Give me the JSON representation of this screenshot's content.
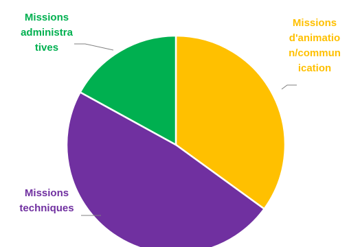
{
  "chart_data": {
    "type": "pie",
    "labels": [
      [
        "Missions",
        "d'animatio",
        "n/commun",
        "ication"
      ],
      [
        "Missions",
        "techniques"
      ],
      [
        "Missions",
        "administra",
        "tives"
      ]
    ],
    "values": [
      35,
      48,
      17
    ],
    "colors": [
      "#FFC000",
      "#7030A0",
      "#00B050"
    ]
  }
}
